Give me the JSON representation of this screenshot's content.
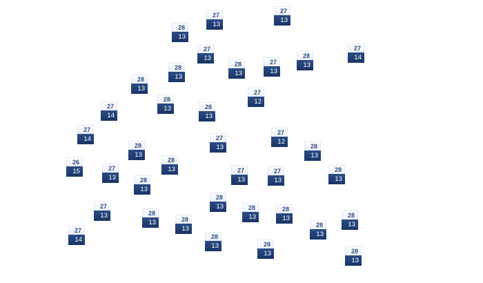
{
  "colors": {
    "high_text": "#2c4a80",
    "low_top": "#2a4d85",
    "low_bottom": "#1b3366"
  },
  "markers": [
    {
      "high": "27",
      "low": "13"
    },
    {
      "high": "27",
      "low": "13"
    },
    {
      "high": "28",
      "low": "13"
    },
    {
      "high": "27",
      "low": "13"
    },
    {
      "high": "28",
      "low": "13"
    },
    {
      "high": "27",
      "low": "13"
    },
    {
      "high": "28",
      "low": "13"
    },
    {
      "high": "27",
      "low": "14"
    },
    {
      "high": "28",
      "low": "13"
    },
    {
      "high": "28",
      "low": "13"
    },
    {
      "high": "28",
      "low": "13"
    },
    {
      "high": "28",
      "low": "13"
    },
    {
      "high": "27",
      "low": "12"
    },
    {
      "high": "27",
      "low": "14"
    },
    {
      "high": "27",
      "low": "14"
    },
    {
      "high": "27",
      "low": "13"
    },
    {
      "high": "27",
      "low": "12"
    },
    {
      "high": "28",
      "low": "13"
    },
    {
      "high": "28",
      "low": "13"
    },
    {
      "high": "28",
      "low": "13"
    },
    {
      "high": "26",
      "low": "15"
    },
    {
      "high": "27",
      "low": "13"
    },
    {
      "high": "27",
      "low": "13"
    },
    {
      "high": "27",
      "low": "13"
    },
    {
      "high": "28",
      "low": "13"
    },
    {
      "high": "28",
      "low": "13"
    },
    {
      "high": "28",
      "low": "13"
    },
    {
      "high": "27",
      "low": "13"
    },
    {
      "high": "28",
      "low": "13"
    },
    {
      "high": "28",
      "low": "13"
    },
    {
      "high": "28",
      "low": "13"
    },
    {
      "high": "28",
      "low": "13"
    },
    {
      "high": "28",
      "low": "13"
    },
    {
      "high": "28",
      "low": "13"
    },
    {
      "high": "27",
      "low": "14"
    },
    {
      "high": "28",
      "low": "13"
    },
    {
      "high": "28",
      "low": "13"
    },
    {
      "high": "28",
      "low": "13"
    }
  ]
}
